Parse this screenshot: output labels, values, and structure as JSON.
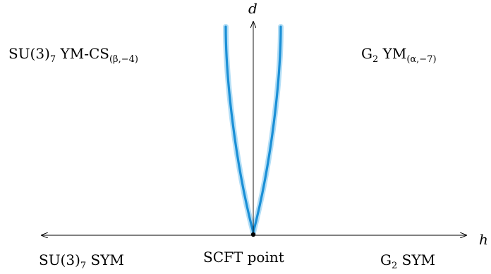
{
  "axes": {
    "vertical_label": "d",
    "horizontal_label": "h"
  },
  "regions": {
    "top_left": {
      "main": "SU(3)",
      "sub_main": "7",
      "rest": " YM-CS",
      "sub_rest": "(β,−4)"
    },
    "top_right": {
      "main": "G",
      "sub_main": "2",
      "rest": " YM",
      "sub_rest": "(α,−7)"
    },
    "bottom_left": {
      "main": "SU(3)",
      "sub_main": "7",
      "rest": " SYM"
    },
    "bottom_center": {
      "text": "SCFT point"
    },
    "bottom_right": {
      "main": "G",
      "sub_main": "2",
      "rest": " SYM"
    }
  },
  "colors": {
    "phase_boundary_glow": "#a6d8f5",
    "phase_boundary_core": "#1a8fd6",
    "axis": "#000000"
  }
}
